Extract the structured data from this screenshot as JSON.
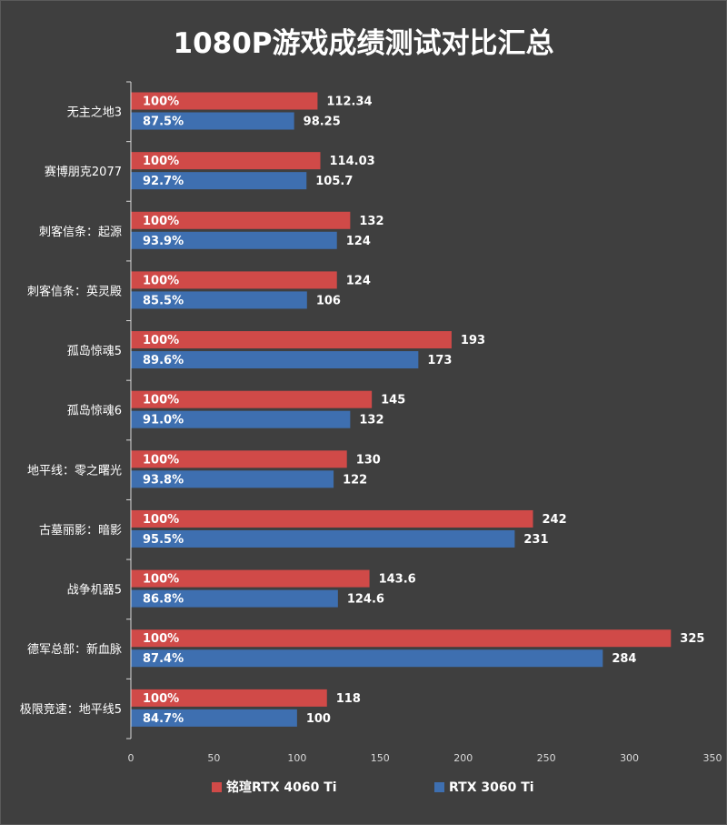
{
  "chart_data": {
    "type": "bar",
    "orientation": "horizontal",
    "title": "1080P游戏成绩测试对比汇总",
    "categories": [
      "无主之地3",
      "赛博朋克2077",
      "刺客信条：起源",
      "刺客信条：英灵殿",
      "孤岛惊魂5",
      "孤岛惊魂6",
      "地平线：零之曙光",
      "古墓丽影：暗影",
      "战争机器5",
      "德军总部：新血脉",
      "极限竞速：地平线5"
    ],
    "series": [
      {
        "name": "铭瑄RTX 4060 Ti",
        "color": "#d04a48",
        "values": [
          112.34,
          114.03,
          132,
          124,
          193,
          145,
          130,
          242,
          143.6,
          325,
          118
        ],
        "value_labels": [
          "112.34",
          "114.03",
          "132",
          "124",
          "193",
          "145",
          "130",
          "242",
          "143.6",
          "325",
          "118"
        ],
        "percent_labels": [
          "100%",
          "100%",
          "100%",
          "100%",
          "100%",
          "100%",
          "100%",
          "100%",
          "100%",
          "100%",
          "100%"
        ]
      },
      {
        "name": "RTX 3060 Ti",
        "color": "#3e6fb0",
        "values": [
          98.25,
          105.7,
          124,
          106,
          173,
          132,
          122,
          231,
          124.6,
          284,
          100
        ],
        "value_labels": [
          "98.25",
          "105.7",
          "124",
          "106",
          "173",
          "132",
          "122",
          "231",
          "124.6",
          "284",
          "100"
        ],
        "percent_labels": [
          "87.5%",
          "92.7%",
          "93.9%",
          "85.5%",
          "89.6%",
          "91.0%",
          "93.8%",
          "95.5%",
          "86.8%",
          "87.4%",
          "84.7%"
        ]
      }
    ],
    "xlim": [
      0,
      350
    ],
    "xticks": [
      "0",
      "50",
      "100",
      "150",
      "200",
      "250",
      "300",
      "350"
    ],
    "grid": false,
    "legend_position": "bottom"
  }
}
